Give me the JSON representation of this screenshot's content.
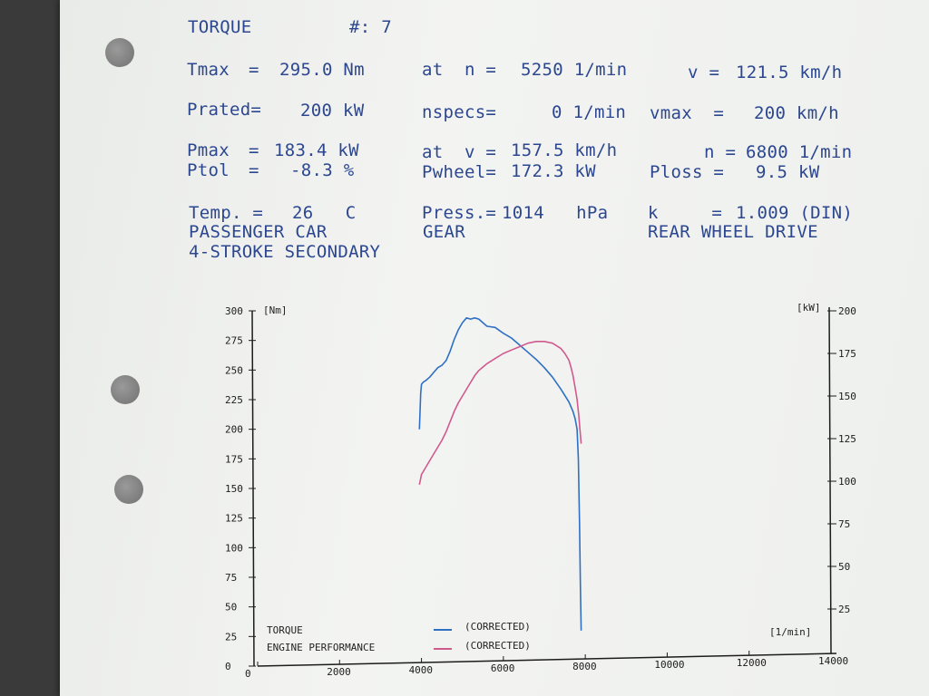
{
  "header": {
    "title": "TORQUE",
    "number": "#: 7",
    "row1": {
      "tmax_label": "Tmax",
      "eq1": "=",
      "tmax_value": "295.0 Nm",
      "at_n_label": "at  n =",
      "n_value": "5250 1/min",
      "v_label": "v =",
      "v_value": "121.5 km/h"
    },
    "row2": {
      "prated_label": "Prated=",
      "prated_value": "200 kW",
      "nspecs_label": "nspecs=",
      "nspecs_value": "0 1/min",
      "vmax_label": "vmax  =",
      "vmax_value": "200 km/h"
    },
    "row3": {
      "pmax_label": "Pmax",
      "eq": "=",
      "pmax_value": "183.4 kW",
      "at_v_label": "at  v =",
      "at_v_value": "157.5 km/h",
      "n_label": "n =",
      "n_value": "6800 1/min"
    },
    "row4": {
      "ptol_label": "Ptol",
      "eq": "=",
      "ptol_value": "-8.3 %",
      "pwheel_label": "Pwheel=",
      "pwheel_value": "172.3 kW",
      "ploss_label": "Ploss =",
      "ploss_value": "9.5 kW"
    },
    "row5": {
      "temp_label": "Temp. =",
      "temp_value": "26   C",
      "press_label": "Press.=",
      "press_value": "1014   hPa",
      "k_label": "k     =",
      "k_value": "1.009 (DIN)"
    },
    "row6": {
      "vehicle": "PASSENGER CAR",
      "gear": "GEAR",
      "drive": "REAR WHEEL DRIVE"
    },
    "row7": {
      "engine": "4-STROKE SECONDARY"
    }
  },
  "chart_data": {
    "type": "line",
    "xlabel": "[1/min]",
    "ylabel_left": "[Nm]",
    "ylabel_right": "[kW]",
    "xlim": [
      0,
      14000
    ],
    "ylim_left": [
      0,
      300
    ],
    "ylim_right": [
      0,
      200
    ],
    "x_ticks": [
      0,
      2000,
      4000,
      6000,
      8000,
      10000,
      12000,
      14000
    ],
    "y_ticks_left": [
      0,
      25,
      50,
      75,
      100,
      125,
      150,
      175,
      200,
      225,
      250,
      275,
      300
    ],
    "y_ticks_right": [
      25,
      50,
      75,
      100,
      125,
      150,
      175,
      200
    ],
    "grid": false,
    "legend": [
      {
        "label": "TORQUE",
        "sublabel": "(CORRECTED)",
        "color": "#2f6fc4"
      },
      {
        "label": "ENGINE PERFORMANCE",
        "sublabel": "(CORRECTED)",
        "color": "#d05a8e"
      }
    ],
    "series": [
      {
        "name": "TORQUE",
        "axis": "left",
        "color": "#2f6fc4",
        "x": [
          3950,
          3980,
          4000,
          4050,
          4100,
          4200,
          4300,
          4400,
          4500,
          4600,
          4700,
          4800,
          4900,
          5000,
          5100,
          5200,
          5300,
          5400,
          5500,
          5600,
          5800,
          6000,
          6200,
          6400,
          6600,
          6800,
          7000,
          7200,
          7400,
          7600,
          7700,
          7750,
          7800,
          7830,
          7860,
          7880,
          7900
        ],
        "y": [
          200,
          230,
          238,
          240,
          241,
          244,
          248,
          252,
          254,
          258,
          266,
          276,
          284,
          290,
          294,
          293,
          294,
          293,
          290,
          287,
          286,
          281,
          277,
          271,
          265,
          259,
          252,
          244,
          234,
          223,
          215,
          209,
          200,
          175,
          120,
          70,
          30
        ]
      },
      {
        "name": "ENGINE PERFORMANCE",
        "axis": "right",
        "color": "#d05a8e",
        "x": [
          3950,
          4000,
          4100,
          4200,
          4300,
          4400,
          4500,
          4600,
          4700,
          4800,
          4900,
          5000,
          5100,
          5200,
          5300,
          5400,
          5500,
          5600,
          5800,
          6000,
          6200,
          6400,
          6600,
          6800,
          7000,
          7200,
          7400,
          7500,
          7600,
          7650,
          7700,
          7750,
          7800,
          7840,
          7870,
          7900
        ],
        "y": [
          98,
          104,
          108,
          112,
          116,
          120,
          124,
          129,
          135,
          141,
          146,
          150,
          154,
          158,
          162,
          165,
          167,
          169,
          172,
          175,
          177,
          179,
          181,
          182,
          182,
          181,
          178,
          175,
          171,
          167,
          162,
          155,
          148,
          139,
          130,
          122
        ]
      }
    ]
  }
}
